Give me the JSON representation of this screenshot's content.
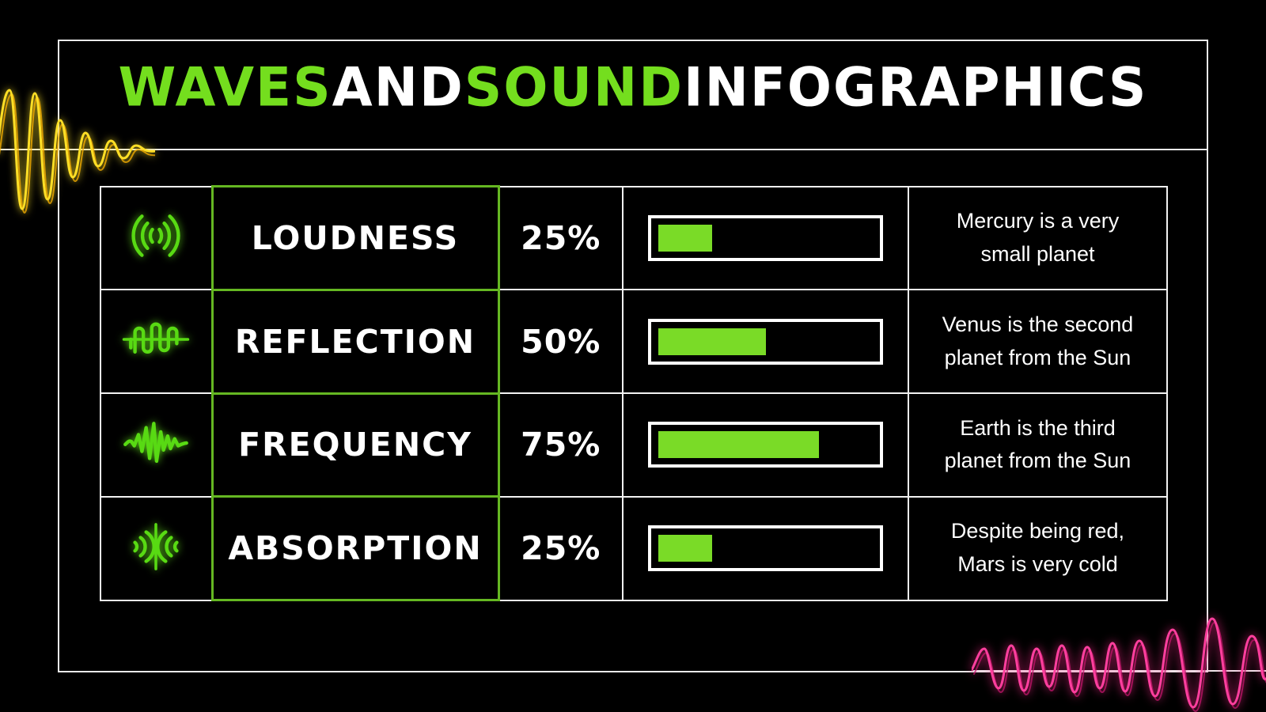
{
  "slide_title": {
    "segments": [
      {
        "text": "WAVES ",
        "color": "#74de1e"
      },
      {
        "text": "AND ",
        "color": "#ffffff"
      },
      {
        "text": "SOUND ",
        "color": "#74de1e"
      },
      {
        "text": "INFOGRAPHICS",
        "color": "#ffffff"
      }
    ]
  },
  "table": {
    "rows": [
      {
        "icon": "loudness-sound-waves-icon",
        "icon_id": "icon-loudness",
        "name": "LOUDNESS",
        "percent_label": "25%",
        "percent_value": 25,
        "description": "Mercury is a very small planet"
      },
      {
        "icon": "reflection-pulse-wave-icon",
        "icon_id": "icon-reflection",
        "name": "REFLECTION",
        "percent_label": "50%",
        "percent_value": 50,
        "description": "Venus is the second planet from the Sun"
      },
      {
        "icon": "frequency-zigzag-wave-icon",
        "icon_id": "icon-frequency",
        "name": "FREQUENCY",
        "percent_label": "75%",
        "percent_value": 75,
        "description": "Earth is the third planet from the Sun"
      },
      {
        "icon": "absorption-converging-waves-icon",
        "icon_id": "icon-absorption",
        "name": "ABSORPTION",
        "percent_label": "25%",
        "percent_value": 25,
        "description": "Despite being red, Mars is very cold"
      }
    ]
  },
  "chart_data": {
    "type": "bar",
    "categories": [
      "LOUDNESS",
      "REFLECTION",
      "FREQUENCY",
      "ABSORPTION"
    ],
    "values": [
      25,
      50,
      75,
      25
    ],
    "value_unit": "%",
    "title": "WAVES AND SOUND INFOGRAPHICS",
    "xlabel": "",
    "ylabel": "",
    "value_range": [
      0,
      100
    ],
    "annotations": [
      "Mercury is a very small planet",
      "Venus is the second planet from the Sun",
      "Earth is the third planet from the Sun",
      "Despite being red, Mars is very cold"
    ],
    "bar_color": "#7adb27",
    "orientation": "horizontal"
  },
  "colors": {
    "background": "#000000",
    "accent_green": "#74de1e",
    "bar_fill_green": "#7adb27",
    "name_column_border_green": "#65b722",
    "grid_white": "#f2f2f2",
    "icon_neon_green": "#58da13",
    "deco_wave_yellow": "#ffd900",
    "deco_wave_pink": "#ff2e96"
  }
}
